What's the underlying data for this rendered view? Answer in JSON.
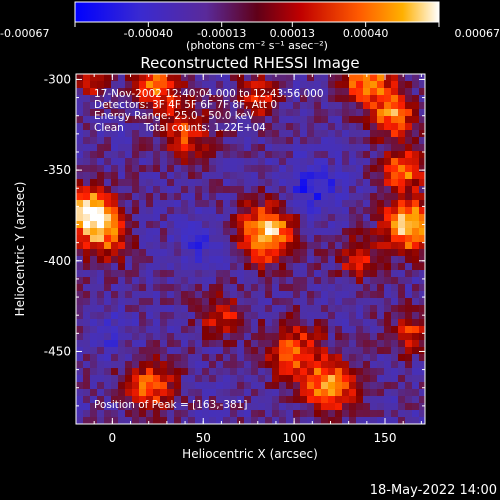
{
  "chart_data": {
    "type": "heatmap",
    "title": "Reconstructed RHESSI Image",
    "xlabel": "Heliocentric X (arcsec)",
    "ylabel": "Heliocentric Y (arcsec)",
    "xlim": [
      -20,
      172
    ],
    "ylim": [
      -490,
      -297
    ],
    "x_ticks": [
      0,
      50,
      100,
      150
    ],
    "x_tick_labels": [
      "0",
      "50",
      "100",
      "150"
    ],
    "y_ticks": [
      -300,
      -350,
      -400,
      -450
    ],
    "y_tick_labels": [
      "-300",
      "-350",
      "-400",
      "-450"
    ],
    "colorbar": {
      "range": [
        -0.00067,
        0.00067
      ],
      "ticks": [
        -0.00067,
        -0.0004,
        -0.00013,
        0.00013,
        0.0004,
        0.00067
      ],
      "tick_labels": [
        "-0.00067",
        "-0.00040",
        "-0.00013",
        "0.00013",
        "0.00040",
        "0.00067"
      ],
      "unit_label": "(photons cm⁻² s⁻¹ asec⁻²)",
      "colormap": [
        "#0000ff",
        "#4030c8",
        "#5030a0",
        "#800000",
        "#ff2000",
        "#ffa000",
        "#ffffff"
      ]
    },
    "annotations": [
      "17-Nov-2002 12:40:04.000 to 12:43:56.000",
      "Detectors: 3F 4F 5F 6F 7F 8F, Att 0",
      "Energy Range: 25.0 - 50.0 keV",
      "Clean      Total counts: 1.22E+04"
    ],
    "peak_label": "Position of Peak = [163,-381]",
    "footer_date": "18-May-2022 14:00",
    "grid": false
  }
}
